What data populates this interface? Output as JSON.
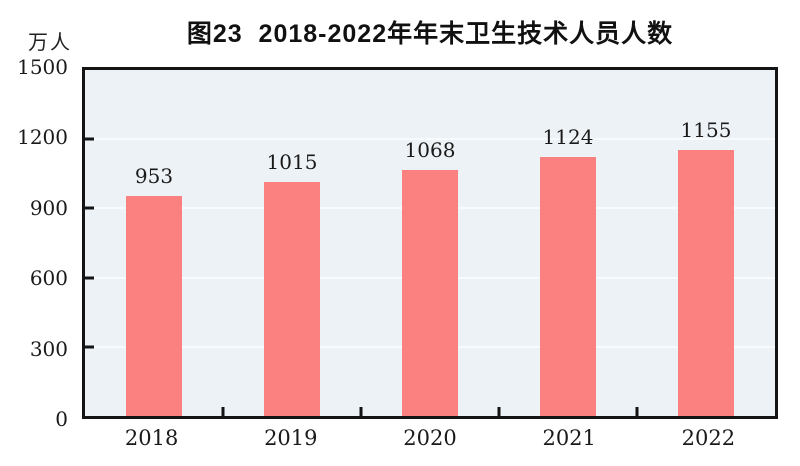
{
  "chart": {
    "title": "图23  2018-2022年年末卫生技术人员人数",
    "unit": "万人"
  },
  "chart_data": {
    "type": "bar",
    "title": "图23  2018-2022年年末卫生技术人员人数",
    "unit_label": "万人",
    "categories": [
      "2018",
      "2019",
      "2020",
      "2021",
      "2022"
    ],
    "values": [
      953,
      1015,
      1068,
      1124,
      1155
    ],
    "value_labels_shown": true,
    "xlabel": "",
    "ylabel": "万人",
    "ylim": [
      0,
      1500
    ],
    "yticks": [
      0,
      300,
      600,
      900,
      1200,
      1500
    ],
    "grid": true,
    "legend": "none",
    "colors": {
      "bar": "#FB8080",
      "plot_background": "#EDF2F6",
      "gridline": "#F8FBFD",
      "axis": "#141414",
      "text": "#1A1A1A",
      "page_background": "#FFFFFF"
    }
  }
}
